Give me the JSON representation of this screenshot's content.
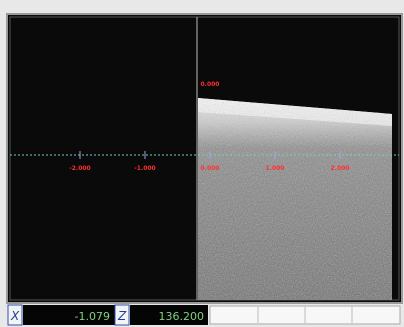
{
  "viewer": {
    "horizontal_labels": [
      "-2.000",
      "-1.000",
      "0.000",
      "1.000",
      "2.000"
    ],
    "vertical_label": "0.000"
  },
  "status_bar": {
    "x_label": "X",
    "x_value": "-1.079",
    "z_label": "Z",
    "z_value": "136.200"
  }
}
